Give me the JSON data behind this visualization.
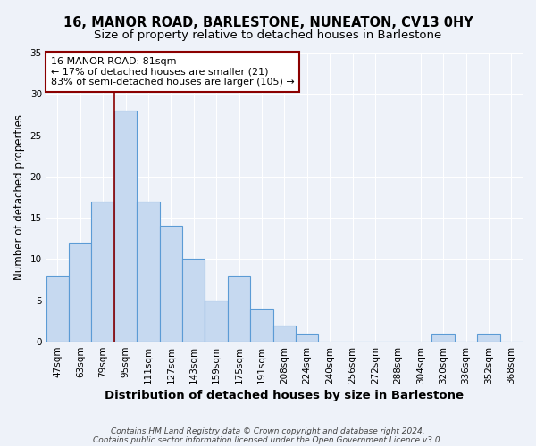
{
  "title": "16, MANOR ROAD, BARLESTONE, NUNEATON, CV13 0HY",
  "subtitle": "Size of property relative to detached houses in Barlestone",
  "xlabel": "Distribution of detached houses by size in Barlestone",
  "ylabel": "Number of detached properties",
  "bin_labels": [
    "47sqm",
    "63sqm",
    "79sqm",
    "95sqm",
    "111sqm",
    "127sqm",
    "143sqm",
    "159sqm",
    "175sqm",
    "191sqm",
    "208sqm",
    "224sqm",
    "240sqm",
    "256sqm",
    "272sqm",
    "288sqm",
    "304sqm",
    "320sqm",
    "336sqm",
    "352sqm",
    "368sqm"
  ],
  "bin_values": [
    8,
    12,
    17,
    28,
    17,
    14,
    10,
    5,
    8,
    4,
    2,
    1,
    0,
    0,
    0,
    0,
    0,
    1,
    0,
    1,
    0
  ],
  "bar_color": "#c6d9f0",
  "bar_edge_color": "#5b9bd5",
  "vline_x_index": 2,
  "vline_color": "#8b0000",
  "annotation_text": "16 MANOR ROAD: 81sqm\n← 17% of detached houses are smaller (21)\n83% of semi-detached houses are larger (105) →",
  "annotation_box_color": "white",
  "annotation_box_edgecolor": "#8b0000",
  "ylim": [
    0,
    35
  ],
  "yticks": [
    0,
    5,
    10,
    15,
    20,
    25,
    30,
    35
  ],
  "footer_line1": "Contains HM Land Registry data © Crown copyright and database right 2024.",
  "footer_line2": "Contains public sector information licensed under the Open Government Licence v3.0.",
  "title_fontsize": 10.5,
  "subtitle_fontsize": 9.5,
  "xlabel_fontsize": 9.5,
  "ylabel_fontsize": 8.5,
  "tick_fontsize": 7.5,
  "annotation_fontsize": 8,
  "footer_fontsize": 6.5,
  "bg_color": "#eef2f9",
  "plot_bg_color": "#eef2f9",
  "grid_color": "#ffffff"
}
